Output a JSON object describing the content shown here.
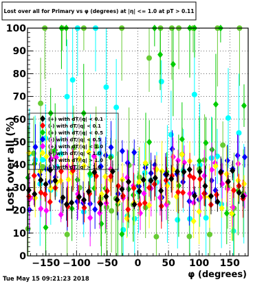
{
  "title": "Lost over all for Primary vs φ (degrees) at |η| <= 1.0 at pT > 0.11",
  "timestamp": "Tue May 15 09:21:23 2018",
  "colors": {
    "background": "#ffffff",
    "frame": "#000000",
    "grid": "#000000"
  },
  "chart_data": {
    "type": "scatter",
    "title": "Lost over all for Primary vs φ (degrees) at |η| <= 1.0 at pT > 0.11",
    "xlabel": "φ (degrees)",
    "ylabel": "Lost over all (%)",
    "xlim": [
      -180,
      180
    ],
    "ylim": [
      0,
      100
    ],
    "x_ticks": [
      -150,
      -100,
      -50,
      0,
      50,
      100,
      150
    ],
    "x_tick_labels": [
      "−150",
      "−100",
      "−50",
      "0",
      "50",
      "100",
      "150"
    ],
    "y_ticks": [
      0,
      10,
      20,
      30,
      40,
      50,
      60,
      70,
      80,
      90,
      100
    ],
    "y_tick_labels": [
      "0",
      "10",
      "20",
      "30",
      "40",
      "50",
      "60",
      "70",
      "80",
      "90",
      "100"
    ],
    "grid": true,
    "legend_position": "left-middle",
    "series": [
      {
        "name": "(+) with dT/|q| < 0.1",
        "color": "#000000",
        "marker": "diamond",
        "band": [
          22,
          38
        ],
        "err": 7
      },
      {
        "name": "(-) with dT/|q| < 0.1",
        "color": "#ff0000",
        "marker": "diamond",
        "band": [
          20,
          38
        ],
        "err": 8
      },
      {
        "name": "(+) with dT/|q| < 0.5",
        "color": "#00cc00",
        "marker": "diamond",
        "band": [
          8,
          100
        ],
        "err": 18
      },
      {
        "name": "(-) with dT/|q| < 0.5",
        "color": "#0000ff",
        "marker": "diamond",
        "band": [
          20,
          48
        ],
        "err": 10
      },
      {
        "name": "(+) with dT/|q| < 1.0",
        "color": "#ff00ff",
        "marker": "diamond",
        "band": [
          15,
          45
        ],
        "err": 10
      },
      {
        "name": "(-) with dT/|q| < 1.0",
        "color": "#ffff00",
        "marker": "diamond",
        "band": [
          15,
          55
        ],
        "err": 12
      },
      {
        "name": "(+) with dT/|q| > 1.0",
        "color": "#00ffff",
        "marker": "circle",
        "band": [
          8,
          100
        ],
        "err": 22
      },
      {
        "name": "(-) with dT/|q| > 1.0",
        "color": "#66cc33",
        "marker": "circle",
        "band": [
          8,
          100
        ],
        "err": 20
      }
    ]
  }
}
